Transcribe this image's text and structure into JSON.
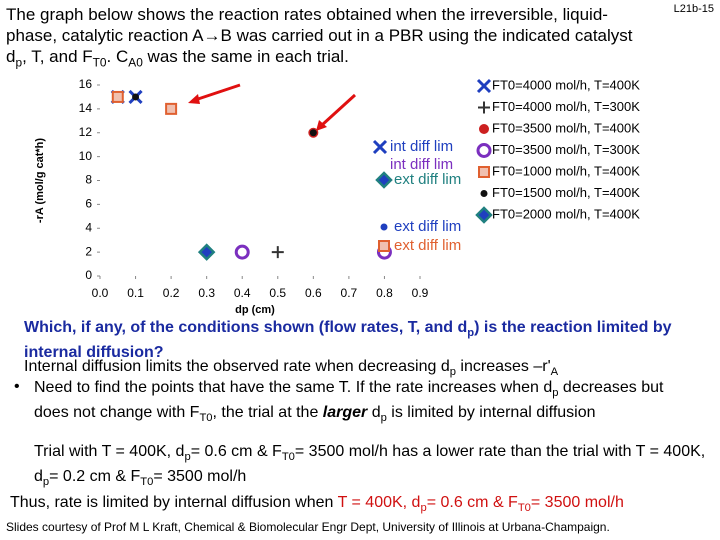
{
  "slide_number": "L21b-15",
  "intro": [
    {
      "t": "The graph below shows the reaction rates obtained when the irreversible, liquid-phase, catalytic reaction A→B was carried out in a PBR using the indicated catalyst d"
    },
    {
      "t": "p",
      "s": "sub"
    },
    {
      "t": ", T, and F"
    },
    {
      "t": "T0",
      "s": "sub"
    },
    {
      "t": ". C"
    },
    {
      "t": "A0",
      "s": "sub"
    },
    {
      "t": " was the same in each trial."
    }
  ],
  "chart_data": {
    "type": "scatter",
    "x_label": "dp (cm)",
    "y_label": "-rA (mol/g cat*h)",
    "xlim": [
      0,
      0.9
    ],
    "xticks": [
      {
        "value": 0,
        "label": "0.0"
      },
      {
        "value": 0.1,
        "label": "0.1"
      },
      {
        "value": 0.2,
        "label": "0.2"
      },
      {
        "value": 0.3,
        "label": "0.3"
      },
      {
        "value": 0.4,
        "label": "0.4"
      },
      {
        "value": 0.5,
        "label": "0.5"
      },
      {
        "value": 0.6,
        "label": "0.6"
      },
      {
        "value": 0.7,
        "label": "0.7"
      },
      {
        "value": 0.8,
        "label": "0.8"
      },
      {
        "value": 0.9,
        "label": "0.9"
      }
    ],
    "ylim": [
      0,
      16
    ],
    "yticks": [
      0,
      2,
      4,
      6,
      8,
      10,
      12,
      14,
      16
    ],
    "series": [
      {
        "name": "FT0=4000 mol/h, T=400K",
        "color": "#1f3fbf",
        "marker": "x",
        "x": [
          0.05,
          0.1
        ],
        "values": [
          15,
          15
        ]
      },
      {
        "name": "FT0=4000 mol/h, T=300K",
        "color": "#333333",
        "marker": "plus",
        "x": [
          0.3,
          0.5
        ],
        "values": [
          2,
          2
        ]
      },
      {
        "name": "FT0=3500 mol/h, T=400K",
        "color": "#cc2020",
        "marker": "circle",
        "x": [
          0.2,
          0.6
        ],
        "values": [
          14,
          12
        ]
      },
      {
        "name": "FT0=3500 mol/h, T=300K",
        "color": "#7b2fbf",
        "marker": "ring",
        "x": [
          0.4,
          0.8
        ],
        "values": [
          2,
          2
        ]
      },
      {
        "name": "FT0=1000 mol/h, T=400K",
        "color": "#e06030",
        "marker": "square",
        "x": [
          0.05,
          0.2
        ],
        "values": [
          15,
          14
        ]
      },
      {
        "name": "FT0=1500 mol/h, T=400K",
        "color": "#111111",
        "marker": "dot",
        "x": [
          0.1,
          0.6
        ],
        "values": [
          15,
          12
        ]
      },
      {
        "name": "FT0=2000 mol/h, T=400K",
        "color": "#208080",
        "marker": "diamond",
        "x": [
          0.3
        ],
        "values": [
          2
        ]
      }
    ],
    "annotations": [
      {
        "text": "int diff lim",
        "color": "#1f3fbf",
        "marker": "x"
      },
      {
        "text": "int diff lim",
        "color": "#7b2fbf"
      },
      {
        "text": "ext diff lim",
        "color": "#208080",
        "marker": "diamond"
      },
      {
        "text": "ext diff lim",
        "color": "#1f3fbf",
        "marker": "dot"
      },
      {
        "text": "ext diff lim",
        "color": "#e06030",
        "marker": "square"
      }
    ]
  },
  "question": [
    {
      "t": "Which, if any, of the conditions shown (flow rates, T, and d"
    },
    {
      "t": "p",
      "s": "sub"
    },
    {
      "t": ") is the reaction limited by internal diffusion?"
    }
  ],
  "explanation": [
    {
      "t": "Internal diffusion limits the observed rate when decreasing d"
    },
    {
      "t": "p",
      "s": "sub"
    },
    {
      "t": " increases –r'"
    },
    {
      "t": "A",
      "s": "sub"
    }
  ],
  "bullet": [
    {
      "t": "Need to find the points that have the same T. If the rate increases when d"
    },
    {
      "t": "p",
      "s": "sub"
    },
    {
      "t": " decreases but does not change with F"
    },
    {
      "t": "T0",
      "s": "sub"
    },
    {
      "t": ", the trial at the "
    },
    {
      "t": "larger",
      "s": "bi"
    },
    {
      "t": " d"
    },
    {
      "t": "p",
      "s": "sub"
    },
    {
      "t": " is limited by internal diffusion"
    }
  ],
  "comparison": [
    {
      "t": "Trial with T = 400K, d"
    },
    {
      "t": "p",
      "s": "sub"
    },
    {
      "t": "= 0.6 cm & F"
    },
    {
      "t": "T0",
      "s": "sub"
    },
    {
      "t": "= 3500 mol/h has a lower rate than the trial with T = 400K, d"
    },
    {
      "t": "p",
      "s": "sub"
    },
    {
      "t": "= 0.2 cm & F"
    },
    {
      "t": "T0",
      "s": "sub"
    },
    {
      "t": "= 3500 mol/h"
    }
  ],
  "conclusion": [
    {
      "t": "Thus, rate is limited by internal diffusion when "
    },
    {
      "t": "T = 400K, d",
      "s": "r"
    },
    {
      "t": "p",
      "s": "rsub"
    },
    {
      "t": "= 0.6 cm & F",
      "s": "r"
    },
    {
      "t": "T0",
      "s": "rsub"
    },
    {
      "t": "= 3500 mol/h",
      "s": "r"
    }
  ],
  "footer": "Slides courtesy of Prof M L Kraft, Chemical & Biomolecular Engr Dept, University of Illinois at Urbana-Champaign."
}
